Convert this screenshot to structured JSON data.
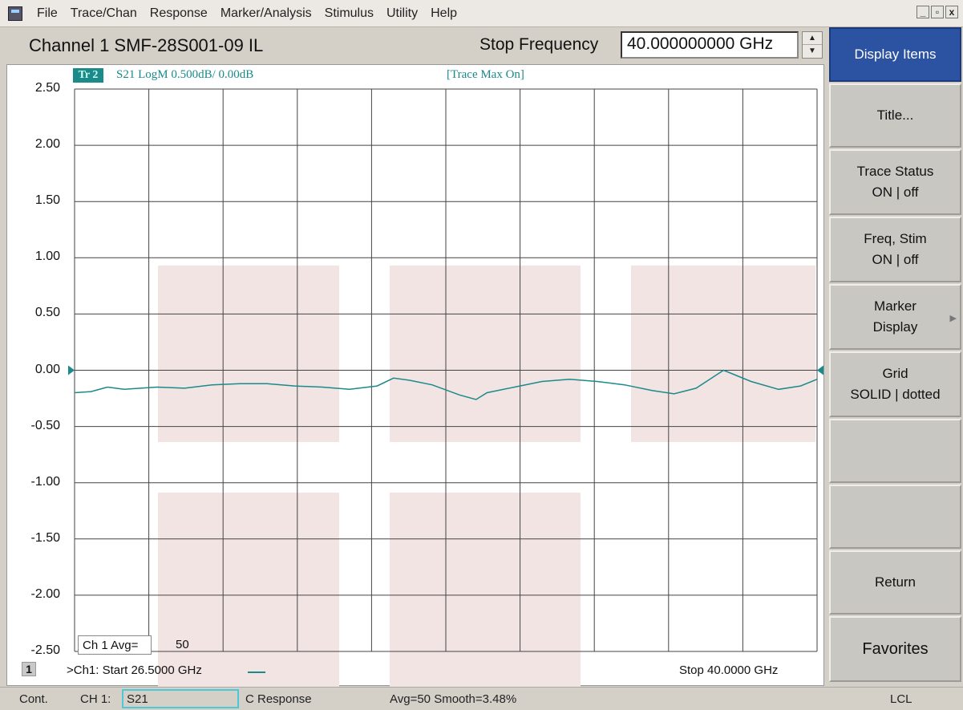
{
  "menu": {
    "items": [
      "File",
      "Trace/Chan",
      "Response",
      "Marker/Analysis",
      "Stimulus",
      "Utility",
      "Help"
    ],
    "window_controls": [
      "_",
      "▫",
      "x"
    ]
  },
  "channel": {
    "title": "Channel 1 SMF-28S001-09 IL",
    "stop_frequency_label": "Stop Frequency",
    "stop_frequency_value": "40.000000000 GHz"
  },
  "trace": {
    "badge": "Tr 2",
    "info": "S21 LogM 0.500dB/  0.00dB",
    "mode": "[Trace Max On]",
    "color": "#1a8a8a"
  },
  "chart_data": {
    "type": "line",
    "ylabel_ticks": [
      "2.50",
      "2.00",
      "1.50",
      "1.00",
      "0.50",
      "0.00",
      "-0.50",
      "-1.00",
      "-1.50",
      "-2.00",
      "-2.50"
    ],
    "ylim": [
      -2.5,
      2.5
    ],
    "xlim": [
      26.5,
      40.0
    ],
    "grid": true,
    "series": [
      {
        "x": [
          26.5,
          26.8,
          27.1,
          27.4,
          27.7,
          28.0,
          28.5,
          29.0,
          29.5,
          30.0,
          30.5,
          31.0,
          31.5,
          32.0,
          32.3,
          32.6,
          33.0,
          33.5,
          33.8,
          34.0,
          34.5,
          35.0,
          35.5,
          36.0,
          36.5,
          37.0,
          37.4,
          37.8,
          38.3,
          38.8,
          39.3,
          39.7,
          40.0
        ],
        "y": [
          -0.2,
          -0.19,
          -0.15,
          -0.17,
          -0.16,
          -0.15,
          -0.16,
          -0.13,
          -0.12,
          -0.12,
          -0.14,
          -0.15,
          -0.17,
          -0.14,
          -0.07,
          -0.09,
          -0.13,
          -0.22,
          -0.26,
          -0.2,
          -0.15,
          -0.1,
          -0.08,
          -0.1,
          -0.13,
          -0.18,
          -0.21,
          -0.16,
          0.0,
          -0.1,
          -0.17,
          -0.14,
          -0.08
        ]
      }
    ],
    "markers": {
      "reference_level": "0.00"
    }
  },
  "footer": {
    "avg_label": "Ch 1 Avg=",
    "avg_value": "50",
    "channel_number": "1",
    "start_label": ">Ch1: Start  26.5000 GHz",
    "stop_label": "Stop  40.0000 GHz"
  },
  "softkeys": [
    {
      "lines": [
        "Display Items"
      ],
      "active": true
    },
    {
      "lines": [
        "Title..."
      ],
      "active": false
    },
    {
      "lines": [
        "Trace Status",
        "ON | off"
      ],
      "active": false
    },
    {
      "lines": [
        "Freq, Stim",
        "ON | off"
      ],
      "active": false
    },
    {
      "lines": [
        "Marker",
        "Display"
      ],
      "active": false,
      "submenu": true
    },
    {
      "lines": [
        "Grid",
        "SOLID | dotted"
      ],
      "active": false
    },
    {
      "lines": [
        ""
      ],
      "active": false
    },
    {
      "lines": [
        ""
      ],
      "active": false
    },
    {
      "lines": [
        "Return"
      ],
      "active": false
    },
    {
      "lines": [
        "Favorites"
      ],
      "active": false
    }
  ],
  "status": {
    "mode": "Cont.",
    "channel": "CH 1:",
    "param": "S21",
    "correction": "C  Response",
    "averaging": "Avg=50 Smooth=3.48%",
    "remote": "LCL"
  },
  "colors": {
    "active_softkey": "#2c52a2",
    "trace": "#1a8a8a",
    "highlight_zones": "#f3e4e4"
  }
}
